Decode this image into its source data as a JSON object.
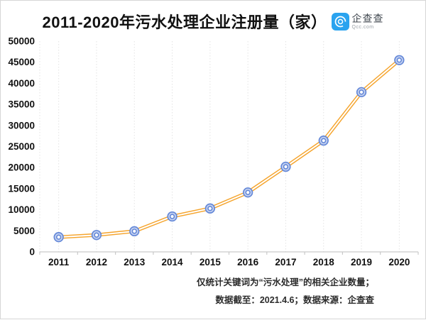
{
  "page": {
    "background": "#ffffff",
    "border_color": "#d6d6d6"
  },
  "header": {
    "title": "2011-2020年污水处理企业注册量（家）",
    "logo": {
      "name": "企查查",
      "domain": "Qcc.com",
      "brand_color": "#2aa3ef"
    }
  },
  "footer": {
    "line1": "仅统计关键词为“污水处理”的相关企业数量；",
    "line2": "数据截至：2021.4.6；数据来源：企查查"
  },
  "chart_data": {
    "type": "line",
    "title": "2011-2020年污水处理企业注册量（家）",
    "categories": [
      "2011",
      "2012",
      "2013",
      "2014",
      "2015",
      "2016",
      "2017",
      "2018",
      "2019",
      "2020"
    ],
    "series": [
      {
        "name": "污水处理企业注册量",
        "values": [
          3500,
          4000,
          4900,
          8400,
          10300,
          14100,
          20200,
          26400,
          37900,
          45500
        ]
      }
    ],
    "xlabel": "",
    "ylabel": "",
    "ylim": [
      0,
      50000
    ],
    "ytick_step": 5000,
    "grid": "vertical-dotted",
    "legend": "none",
    "marker": "double-circle",
    "line_style": "double-line",
    "colors": {
      "line": "#f5a42c",
      "line_inner": "#ffffff",
      "marker_stroke": "#6488d8",
      "marker_fill": "#c4d1f0",
      "marker_center": "#ffffff",
      "grid": "#e3e3e3",
      "axis": "#c9c9c9",
      "tick_label": "#111111"
    }
  }
}
